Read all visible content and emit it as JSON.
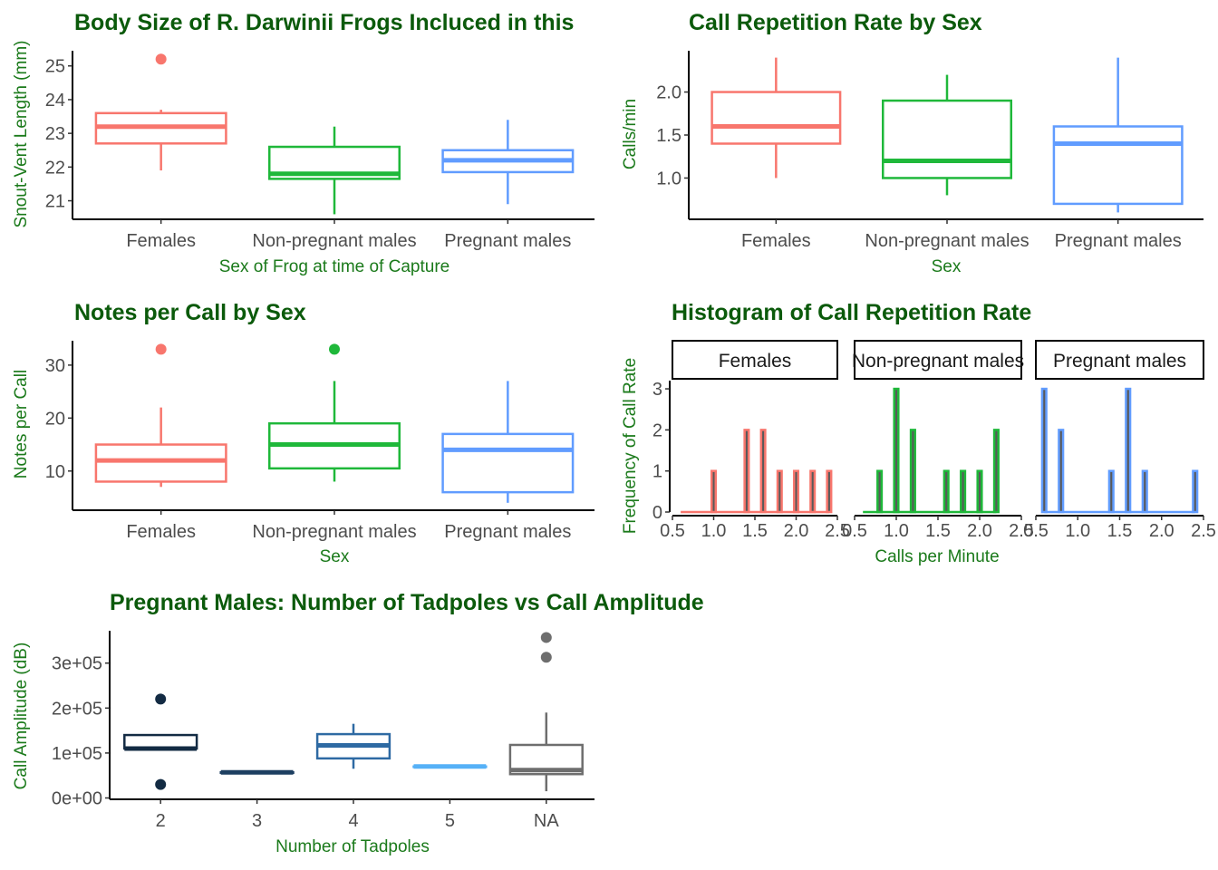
{
  "colors": {
    "title": "#0b5a0b",
    "axis_label": "#1b7a1b",
    "females": "#F8766D",
    "non_pregnant": "#1FB83A",
    "pregnant": "#619CFF"
  },
  "chart_data": [
    {
      "id": "body_size",
      "type": "box",
      "title": "Body Size of R. Darwinii Frogs Incluced in this",
      "xlabel": "Sex of Frog at time of Capture",
      "ylabel": "Snout-Vent Length (mm)",
      "categories": [
        "Females",
        "Non-pregnant males",
        "Pregnant males"
      ],
      "ylim": [
        20.45,
        25.45
      ],
      "yticks": [
        21,
        22,
        23,
        24,
        25
      ],
      "boxes": [
        {
          "category": "Females",
          "color": "#F8766D",
          "lower_whisker": 21.9,
          "q1": 22.7,
          "median": 23.2,
          "q3": 23.6,
          "upper_whisker": 23.7,
          "outliers": [
            25.2
          ]
        },
        {
          "category": "Non-pregnant males",
          "color": "#1FB83A",
          "lower_whisker": 20.6,
          "q1": 21.65,
          "median": 21.8,
          "q3": 22.6,
          "upper_whisker": 23.2,
          "outliers": []
        },
        {
          "category": "Pregnant males",
          "color": "#619CFF",
          "lower_whisker": 20.9,
          "q1": 21.85,
          "median": 22.2,
          "q3": 22.5,
          "upper_whisker": 23.4,
          "outliers": []
        }
      ],
      "grid": false
    },
    {
      "id": "call_rate",
      "type": "box",
      "title": "Call Repetition Rate by Sex",
      "xlabel": "Sex",
      "ylabel": "Calls/min",
      "categories": [
        "Females",
        "Non-pregnant males",
        "Pregnant males"
      ],
      "ylim": [
        0.52,
        2.48
      ],
      "yticks": [
        1.0,
        1.5,
        2.0
      ],
      "ytick_labels": [
        "1.0",
        "1.5",
        "2.0"
      ],
      "boxes": [
        {
          "category": "Females",
          "color": "#F8766D",
          "lower_whisker": 1.0,
          "q1": 1.4,
          "median": 1.6,
          "q3": 2.0,
          "upper_whisker": 2.4,
          "outliers": []
        },
        {
          "category": "Non-pregnant males",
          "color": "#1FB83A",
          "lower_whisker": 0.8,
          "q1": 1.0,
          "median": 1.2,
          "q3": 1.9,
          "upper_whisker": 2.2,
          "outliers": []
        },
        {
          "category": "Pregnant males",
          "color": "#619CFF",
          "lower_whisker": 0.6,
          "q1": 0.7,
          "median": 1.4,
          "q3": 1.6,
          "upper_whisker": 2.4,
          "outliers": []
        }
      ],
      "grid": false
    },
    {
      "id": "notes_per_call",
      "type": "box",
      "title": "Notes per Call by Sex",
      "xlabel": "Sex",
      "ylabel": "Notes per Call",
      "categories": [
        "Females",
        "Non-pregnant males",
        "Pregnant males"
      ],
      "ylim": [
        2.6,
        34.6
      ],
      "yticks": [
        10,
        20,
        30
      ],
      "boxes": [
        {
          "category": "Females",
          "color": "#F8766D",
          "lower_whisker": 7,
          "q1": 8,
          "median": 12,
          "q3": 15,
          "upper_whisker": 22,
          "outliers": [
            33
          ]
        },
        {
          "category": "Non-pregnant males",
          "color": "#1FB83A",
          "lower_whisker": 8,
          "q1": 10.5,
          "median": 15,
          "q3": 19,
          "upper_whisker": 27,
          "outliers": [
            33
          ]
        },
        {
          "category": "Pregnant males",
          "color": "#619CFF",
          "lower_whisker": 4,
          "q1": 6,
          "median": 14,
          "q3": 17,
          "upper_whisker": 27,
          "outliers": []
        }
      ],
      "grid": false
    },
    {
      "id": "call_rate_hist",
      "type": "bar",
      "title": "Histogram of Call Repetition Rate",
      "xlabel": "Calls per Minute",
      "ylabel": "Frequency of Call Rate",
      "xlim": [
        0.5,
        2.5
      ],
      "xticks": [
        0.5,
        1.0,
        1.5,
        2.0,
        2.5
      ],
      "xtick_labels": [
        "0.5",
        "1.0",
        "1.5",
        "2.0",
        "2.5"
      ],
      "ylim": [
        0,
        3.2
      ],
      "yticks": [
        0,
        1,
        2,
        3
      ],
      "bin_width": 0.05,
      "facets": [
        {
          "label": "Females",
          "color": "#F8766D",
          "range": [
            0.6,
            2.4
          ],
          "bars": [
            {
              "x": 1.0,
              "count": 1
            },
            {
              "x": 1.4,
              "count": 2
            },
            {
              "x": 1.6,
              "count": 2
            },
            {
              "x": 1.8,
              "count": 1
            },
            {
              "x": 2.0,
              "count": 1
            },
            {
              "x": 2.2,
              "count": 1
            },
            {
              "x": 2.4,
              "count": 1
            }
          ]
        },
        {
          "label": "Non-pregnant males",
          "color": "#1FB83A",
          "range": [
            0.6,
            2.2
          ],
          "bars": [
            {
              "x": 0.8,
              "count": 1
            },
            {
              "x": 1.0,
              "count": 3
            },
            {
              "x": 1.2,
              "count": 2
            },
            {
              "x": 1.6,
              "count": 1
            },
            {
              "x": 1.8,
              "count": 1
            },
            {
              "x": 2.0,
              "count": 1
            },
            {
              "x": 2.2,
              "count": 2
            }
          ]
        },
        {
          "label": "Pregnant males",
          "color": "#619CFF",
          "range": [
            0.6,
            2.4
          ],
          "bars": [
            {
              "x": 0.6,
              "count": 3
            },
            {
              "x": 0.8,
              "count": 2
            },
            {
              "x": 1.4,
              "count": 1
            },
            {
              "x": 1.6,
              "count": 3
            },
            {
              "x": 1.8,
              "count": 1
            },
            {
              "x": 2.4,
              "count": 1
            }
          ]
        }
      ],
      "grid": false
    },
    {
      "id": "tadpoles_amplitude",
      "type": "box",
      "title": "Pregnant Males: Number of Tadpoles vs Call Amplitude",
      "xlabel": "Number of Tadpoles",
      "ylabel": "Call Amplitude (dB)",
      "categories": [
        "2",
        "3",
        "4",
        "5",
        "NA"
      ],
      "ylim": [
        -3000,
        372000
      ],
      "yticks": [
        0,
        100000,
        200000,
        300000
      ],
      "ytick_labels": [
        "0e+00",
        "1e+05",
        "2e+05",
        "3e+05"
      ],
      "boxes": [
        {
          "category": "2",
          "color": "#132B43",
          "lower_whisker": 110000,
          "q1": 110000,
          "median": 110000,
          "q3": 140000,
          "upper_whisker": 140000,
          "outliers": [
            220000,
            30000
          ]
        },
        {
          "category": "3",
          "color": "#1D3F61",
          "lower_whisker": 57000,
          "q1": 57000,
          "median": 57000,
          "q3": 57000,
          "upper_whisker": 57000,
          "outliers": []
        },
        {
          "category": "4",
          "color": "#2E6AA3",
          "lower_whisker": 65000,
          "q1": 88000,
          "median": 117000,
          "q3": 142000,
          "upper_whisker": 165000,
          "outliers": []
        },
        {
          "category": "5",
          "color": "#56B1F7",
          "lower_whisker": 70000,
          "q1": 70000,
          "median": 70000,
          "q3": 70000,
          "upper_whisker": 70000,
          "outliers": []
        },
        {
          "category": "NA",
          "color": "#6E6E6E",
          "lower_whisker": 15000,
          "q1": 53000,
          "median": 62000,
          "q3": 118000,
          "upper_whisker": 190000,
          "outliers": [
            357000,
            313000
          ]
        }
      ],
      "grid": false
    }
  ]
}
